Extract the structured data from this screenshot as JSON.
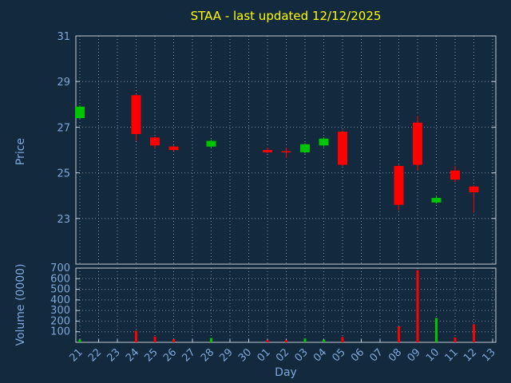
{
  "colors": {
    "background": "#12293e",
    "title": "#ffff00",
    "axis_text": "#7fa8d8",
    "grid": "#808ea0",
    "frame": "#c4ccd4",
    "up": "#00c400",
    "down": "#ff0000"
  },
  "chart_data": {
    "type": "candlestick_with_volume",
    "title": "STAA - last updated 12/12/2025",
    "xlabel": "Day",
    "ylabel": "Price",
    "volume_label": "Volume (0000)",
    "x_categories": [
      "21",
      "22",
      "23",
      "24",
      "25",
      "26",
      "27",
      "28",
      "29",
      "30",
      "01",
      "02",
      "03",
      "04",
      "05",
      "06",
      "07",
      "08",
      "09",
      "10",
      "11",
      "12",
      "13"
    ],
    "price_axis": {
      "min": 21,
      "max": 31,
      "ticks": [
        23,
        25,
        27,
        29,
        31
      ]
    },
    "volume_axis": {
      "min": 0,
      "max": 700,
      "ticks": [
        100,
        200,
        300,
        400,
        500,
        600,
        700
      ]
    },
    "grid": "dotted",
    "legend": "none",
    "candles": [
      {
        "day": "21",
        "open": 27.4,
        "high": 27.95,
        "low": 27.35,
        "close": 27.9,
        "volume": 25
      },
      {
        "day": "24",
        "open": 28.4,
        "high": 28.45,
        "low": 26.4,
        "close": 26.7,
        "volume": 110
      },
      {
        "day": "25",
        "open": 26.55,
        "high": 26.6,
        "low": 26.05,
        "close": 26.2,
        "volume": 55
      },
      {
        "day": "26",
        "open": 26.15,
        "high": 26.2,
        "low": 25.95,
        "close": 26.0,
        "volume": 30
      },
      {
        "day": "28",
        "open": 26.15,
        "high": 26.45,
        "low": 26.1,
        "close": 26.4,
        "volume": 40
      },
      {
        "day": "01",
        "open": 26.0,
        "high": 26.1,
        "low": 25.85,
        "close": 25.9,
        "volume": 20
      },
      {
        "day": "02",
        "open": 25.95,
        "high": 26.1,
        "low": 25.65,
        "close": 25.9,
        "volume": 20
      },
      {
        "day": "03",
        "open": 25.9,
        "high": 26.3,
        "low": 25.85,
        "close": 26.25,
        "volume": 35
      },
      {
        "day": "04",
        "open": 26.2,
        "high": 26.55,
        "low": 26.15,
        "close": 26.5,
        "volume": 25
      },
      {
        "day": "05",
        "open": 26.8,
        "high": 26.85,
        "low": 25.3,
        "close": 25.35,
        "volume": 50
      },
      {
        "day": "08",
        "open": 25.3,
        "high": 25.35,
        "low": 23.35,
        "close": 23.6,
        "volume": 150
      },
      {
        "day": "09",
        "open": 27.2,
        "high": 27.5,
        "low": 25.1,
        "close": 25.35,
        "volume": 680
      },
      {
        "day": "10",
        "open": 23.7,
        "high": 24.0,
        "low": 23.65,
        "close": 23.9,
        "volume": 230
      },
      {
        "day": "11",
        "open": 25.1,
        "high": 25.3,
        "low": 24.6,
        "close": 24.7,
        "volume": 45
      },
      {
        "day": "12",
        "open": 24.4,
        "high": 24.45,
        "low": 23.25,
        "close": 24.15,
        "volume": 170
      }
    ]
  }
}
